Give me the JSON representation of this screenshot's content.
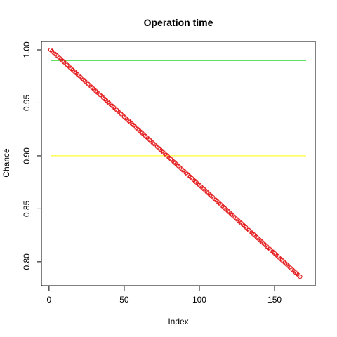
{
  "chart_data": {
    "type": "scatter",
    "title": "Operation time",
    "xlabel": "Index",
    "ylabel": "Chance",
    "xlim": [
      1,
      171
    ],
    "ylim": [
      0.786,
      1.0
    ],
    "x_ticks": [
      {
        "value": 0,
        "label": "0"
      },
      {
        "value": 50,
        "label": "50"
      },
      {
        "value": 100,
        "label": "100"
      },
      {
        "value": 150,
        "label": "150"
      }
    ],
    "y_ticks": [
      {
        "value": 0.8,
        "label": "0.80"
      },
      {
        "value": 0.85,
        "label": "0.85"
      },
      {
        "value": 0.9,
        "label": "0.90"
      },
      {
        "value": 0.95,
        "label": "0.95"
      },
      {
        "value": 1.0,
        "label": "1.00"
      }
    ],
    "grid": false,
    "series": [
      {
        "marker": "open-circle",
        "color": "#e41a1c",
        "x_start": 1,
        "x_end": 171,
        "values": [
          1.0,
          0.9987,
          0.9974,
          0.9961,
          0.9948,
          0.9936,
          0.9923,
          0.991,
          0.9897,
          0.9884,
          0.9871,
          0.9858,
          0.9845,
          0.9832,
          0.9819,
          0.9807,
          0.9794,
          0.9781,
          0.9768,
          0.9755,
          0.9742,
          0.9729,
          0.9716,
          0.9703,
          0.9691,
          0.9678,
          0.9665,
          0.9652,
          0.9639,
          0.9626,
          0.9613,
          0.96,
          0.9587,
          0.9575,
          0.9562,
          0.9549,
          0.9536,
          0.9523,
          0.951,
          0.9497,
          0.9484,
          0.9471,
          0.9458,
          0.9446,
          0.9433,
          0.942,
          0.9407,
          0.9394,
          0.9381,
          0.9368,
          0.9355,
          0.9342,
          0.933,
          0.9317,
          0.9304,
          0.9291,
          0.9278,
          0.9265,
          0.9252,
          0.9239,
          0.9226,
          0.9214,
          0.9201,
          0.9188,
          0.9175,
          0.9162,
          0.9149,
          0.9136,
          0.9123,
          0.911,
          0.9097,
          0.9085,
          0.9072,
          0.9059,
          0.9046,
          0.9033,
          0.902,
          0.9007,
          0.8994,
          0.8981,
          0.8969,
          0.8956,
          0.8943,
          0.893,
          0.8917,
          0.8904,
          0.8891,
          0.8878,
          0.8865,
          0.8853,
          0.884,
          0.8827,
          0.8814,
          0.8801,
          0.8788,
          0.8775,
          0.8762,
          0.8749,
          0.8736,
          0.8724,
          0.8711,
          0.8698,
          0.8685,
          0.8672,
          0.8659,
          0.8646,
          0.8633,
          0.862,
          0.8608,
          0.8595,
          0.8582,
          0.8569,
          0.8556,
          0.8543,
          0.853,
          0.8517,
          0.8504,
          0.8492,
          0.8479,
          0.8466,
          0.8453,
          0.844,
          0.8427,
          0.8414,
          0.8401,
          0.8388,
          0.8375,
          0.8363,
          0.835,
          0.8337,
          0.8324,
          0.8311,
          0.8298,
          0.8285,
          0.8272,
          0.8259,
          0.8247,
          0.8234,
          0.8221,
          0.8208,
          0.8195,
          0.8182,
          0.8169,
          0.8156,
          0.8143,
          0.8131,
          0.8118,
          0.8105,
          0.8092,
          0.8079,
          0.8066,
          0.8053,
          0.804,
          0.8027,
          0.8014,
          0.8002,
          0.7989,
          0.7976,
          0.7963,
          0.795,
          0.7937,
          0.7924,
          0.7911,
          0.7898,
          0.7886,
          0.7873,
          0.786
        ]
      }
    ],
    "reference_lines": [
      {
        "y": 0.99,
        "color": "#00cc00"
      },
      {
        "y": 0.95,
        "color": "#000080"
      },
      {
        "y": 0.9,
        "color": "#ffff00"
      }
    ]
  }
}
